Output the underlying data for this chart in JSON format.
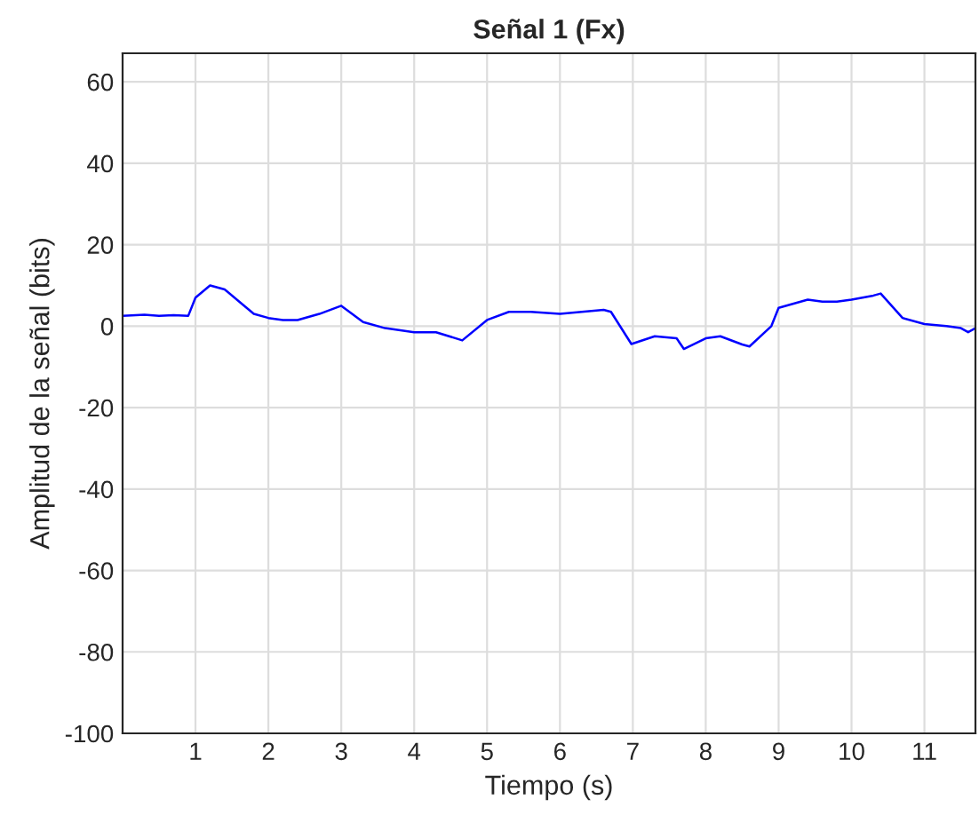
{
  "chart_data": {
    "type": "line",
    "title": "Señal 1 (Fx)",
    "xlabel": "Tiempo (s)",
    "ylabel": "Amplitud de la señal (bits)",
    "xlim": [
      0,
      11.7
    ],
    "ylim": [
      -100,
      67
    ],
    "xticks": [
      1,
      2,
      3,
      4,
      5,
      6,
      7,
      8,
      9,
      10,
      11
    ],
    "yticks": [
      -100,
      -80,
      -60,
      -40,
      -20,
      0,
      20,
      40,
      60
    ],
    "grid": true,
    "series": [
      {
        "color": "#0000ff",
        "x": [
          0,
          0.3,
          0.5,
          0.7,
          0.9,
          1.0,
          1.2,
          1.4,
          1.6,
          1.8,
          2.0,
          2.2,
          2.4,
          2.7,
          3.0,
          3.3,
          3.6,
          4.0,
          4.3,
          4.66,
          5.0,
          5.3,
          5.6,
          6.0,
          6.3,
          6.6,
          6.7,
          6.98,
          7.3,
          7.6,
          7.7,
          8.0,
          8.2,
          8.5,
          8.6,
          8.9,
          9.0,
          9.4,
          9.6,
          9.8,
          10.0,
          10.3,
          10.4,
          10.7,
          11.0,
          11.3,
          11.5,
          11.6,
          11.7
        ],
        "values": [
          2.5,
          2.8,
          2.5,
          2.7,
          2.5,
          7,
          10,
          9,
          6,
          3,
          2,
          1.5,
          1.5,
          3,
          5,
          1,
          -0.5,
          -1.5,
          -1.5,
          -3.5,
          1.5,
          3.5,
          3.5,
          3,
          3.5,
          4,
          3.5,
          -4.4,
          -2.5,
          -3,
          -5.6,
          -3,
          -2.5,
          -4.5,
          -5,
          0,
          4.5,
          6.5,
          6,
          6,
          6.5,
          7.5,
          8,
          2,
          0.5,
          0,
          -0.5,
          -1.5,
          -0.5
        ]
      }
    ]
  }
}
